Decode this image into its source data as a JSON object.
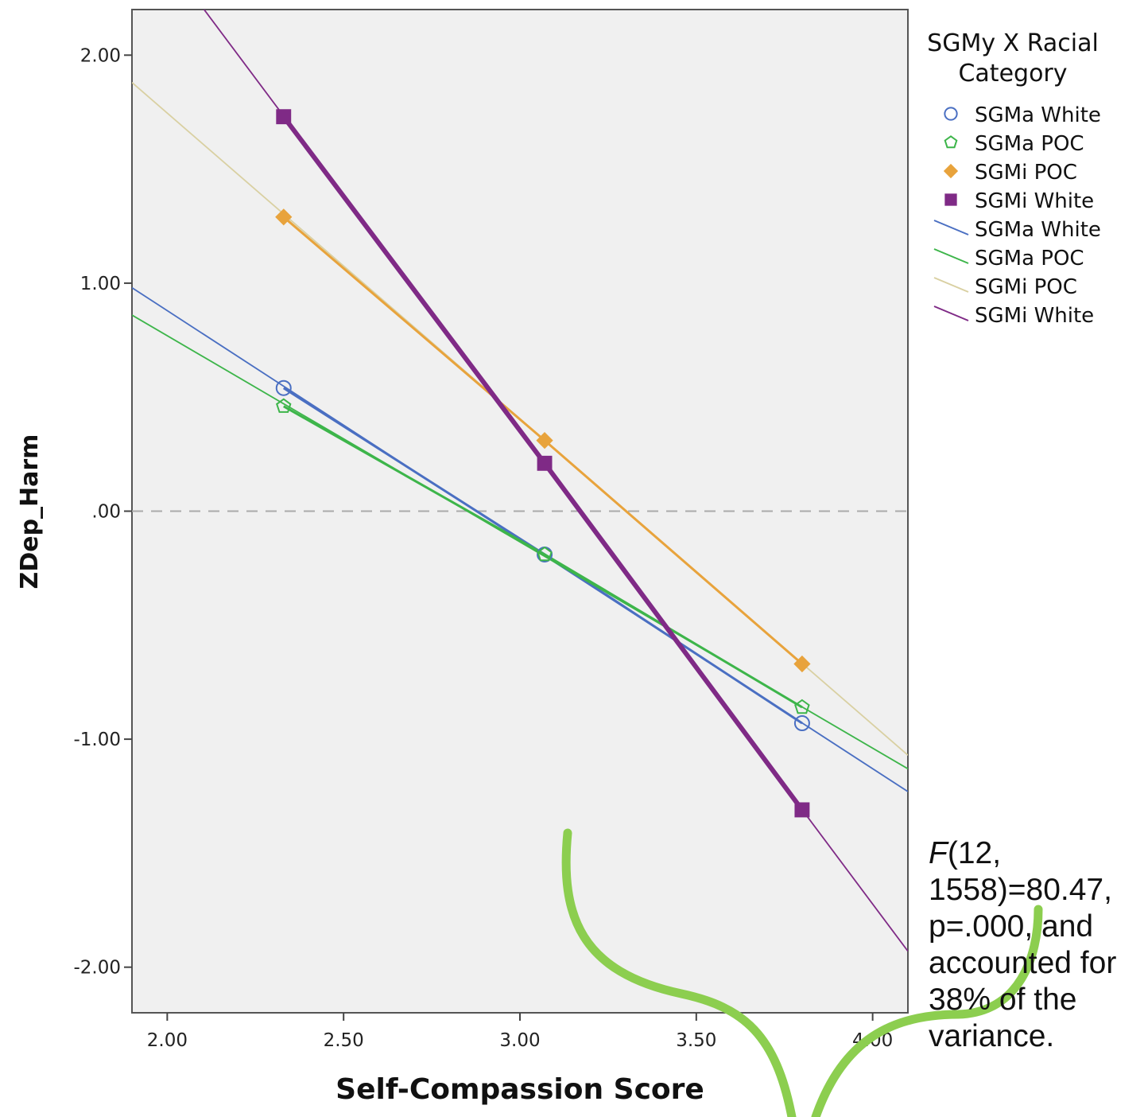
{
  "chart_data": {
    "type": "line",
    "xlabel": "Self-Compassion Score",
    "ylabel": "ZDep_Harm",
    "xlim": [
      1.9,
      4.1
    ],
    "ylim": [
      -2.2,
      2.2
    ],
    "x_ticks": [
      2.0,
      2.5,
      3.0,
      3.5,
      4.0
    ],
    "x_tick_labels": [
      "2.00",
      "2.50",
      "3.00",
      "3.50",
      "4.00"
    ],
    "y_ticks": [
      2.0,
      1.0,
      0.0,
      -1.0,
      -2.0
    ],
    "y_tick_labels": [
      "2.00",
      "1.00",
      ".00",
      "-1.00",
      "-2.00"
    ],
    "reference_line_y": 0,
    "grid": false,
    "legend": {
      "title": "SGMy X Racial Category",
      "title_lines": [
        "SGMy X Racial",
        "Category"
      ],
      "placement": "right",
      "marker_entries": [
        "SGMa White",
        "SGMa POC",
        "SGMi POC",
        "SGMi White"
      ],
      "line_entries": [
        "SGMa White",
        "SGMa POC",
        "SGMi POC",
        "SGMi White"
      ]
    },
    "series": [
      {
        "name": "SGMa White",
        "color": "#4a6fc2",
        "marker": "circle",
        "points": {
          "x": [
            2.33,
            3.07,
            3.8
          ],
          "y": [
            0.54,
            -0.19,
            -0.93
          ]
        },
        "fit_line": {
          "x": [
            1.9,
            4.1
          ],
          "y": [
            0.98,
            -1.23
          ]
        },
        "line_width": 1.6
      },
      {
        "name": "SGMa POC",
        "color": "#3db54a",
        "marker": "pentagon",
        "points": {
          "x": [
            2.33,
            3.07,
            3.8
          ],
          "y": [
            0.46,
            -0.19,
            -0.86
          ]
        },
        "fit_line": {
          "x": [
            1.9,
            4.1
          ],
          "y": [
            0.86,
            -1.13
          ]
        },
        "line_width": 1.6
      },
      {
        "name": "SGMi POC",
        "color": "#e8a33c",
        "line_color": "#d9d0a2",
        "marker": "diamond",
        "points": {
          "x": [
            2.33,
            3.07,
            3.8
          ],
          "y": [
            1.29,
            0.31,
            -0.67
          ]
        },
        "fit_line": {
          "x": [
            1.9,
            4.1
          ],
          "y": [
            1.88,
            -1.07
          ]
        },
        "line_width": 1.6
      },
      {
        "name": "SGMi White",
        "color": "#7f2a86",
        "marker": "square",
        "points": {
          "x": [
            2.33,
            3.07,
            3.8
          ],
          "y": [
            1.73,
            0.21,
            -1.31
          ]
        },
        "fit_line": {
          "x": [
            2.09,
            4.1
          ],
          "y": [
            2.23,
            -1.93
          ]
        },
        "line_width": 1.6
      }
    ]
  },
  "annotation": {
    "f_symbol": "F",
    "text_after_f": "(12, 1558)=80.47, p=.000, and accounted for 38% of the variance."
  },
  "colors": {
    "plot_background": "#f0f0f0",
    "reference_line": "#aaaaaa",
    "brace": "#8cce4f"
  }
}
